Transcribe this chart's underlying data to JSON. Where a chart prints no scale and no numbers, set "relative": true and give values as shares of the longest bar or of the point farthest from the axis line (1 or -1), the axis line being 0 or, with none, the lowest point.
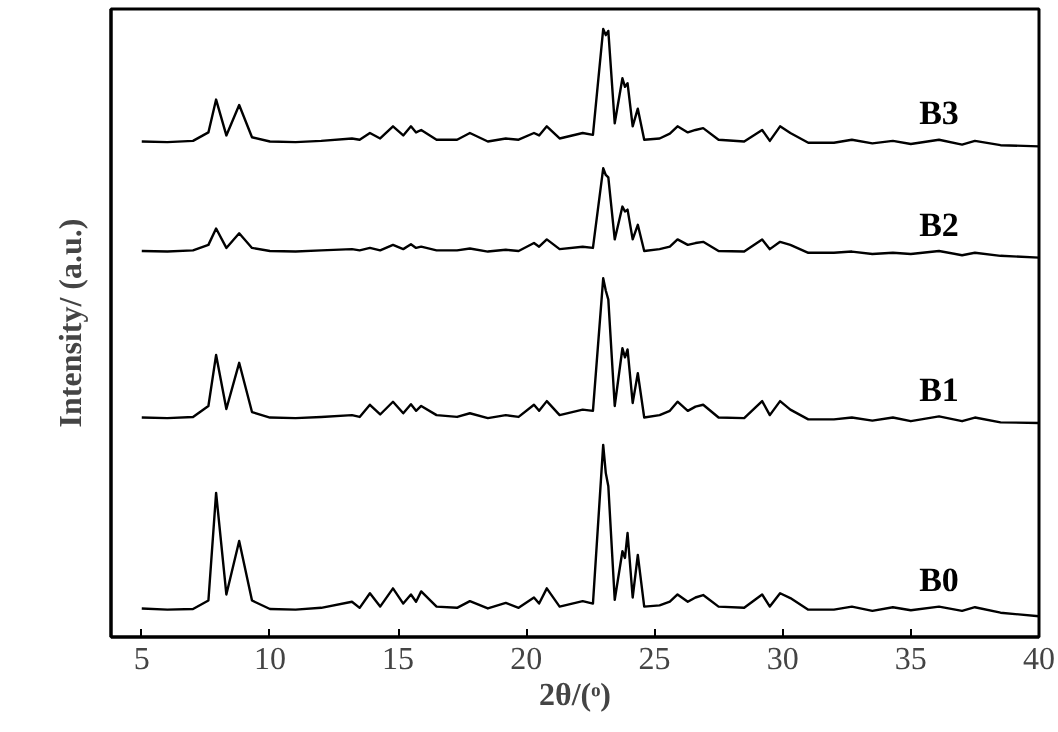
{
  "chart_data": {
    "type": "line",
    "relative": true,
    "xlabel": "2θ/(ᵒ)",
    "ylabel": "Intensity/ (a.u.)",
    "xlim": [
      3.8,
      40
    ],
    "xticks": [
      5,
      10,
      15,
      20,
      25,
      30,
      35,
      40
    ],
    "tick_labels": "x",
    "x": [
      5,
      6,
      7,
      7.6,
      7.9,
      8.3,
      8.8,
      9.3,
      10,
      11,
      12,
      13.2,
      13.5,
      13.9,
      14.3,
      14.8,
      15.2,
      15.5,
      15.7,
      15.9,
      16.5,
      17.3,
      17.8,
      18.5,
      19.2,
      19.7,
      20.3,
      20.5,
      20.8,
      21.3,
      22.2,
      22.6,
      23.0,
      23.1,
      23.2,
      23.45,
      23.75,
      23.85,
      23.95,
      24.15,
      24.35,
      24.6,
      25.2,
      25.6,
      25.9,
      26.3,
      26.6,
      26.9,
      27.5,
      28.5,
      29.2,
      29.5,
      29.9,
      30.3,
      31,
      32,
      32.7,
      33.5,
      34.3,
      35,
      36.1,
      37,
      37.5,
      38.5,
      40
    ],
    "series": [
      {
        "name": "B0",
        "color": "#000000",
        "values": [
          0.047,
          0.045,
          0.046,
          0.06,
          0.237,
          0.07,
          0.158,
          0.06,
          0.046,
          0.045,
          0.048,
          0.058,
          0.048,
          0.072,
          0.05,
          0.08,
          0.055,
          0.07,
          0.058,
          0.075,
          0.05,
          0.048,
          0.059,
          0.047,
          0.056,
          0.048,
          0.065,
          0.055,
          0.08,
          0.05,
          0.059,
          0.055,
          0.316,
          0.27,
          0.248,
          0.061,
          0.141,
          0.13,
          0.171,
          0.065,
          0.135,
          0.05,
          0.052,
          0.058,
          0.07,
          0.058,
          0.065,
          0.069,
          0.05,
          0.048,
          0.07,
          0.05,
          0.072,
          0.064,
          0.045,
          0.045,
          0.05,
          0.043,
          0.049,
          0.044,
          0.05,
          0.043,
          0.049,
          0.04,
          0.034
        ]
      },
      {
        "name": "B1",
        "color": "#000000",
        "values": [
          0.361,
          0.36,
          0.362,
          0.38,
          0.464,
          0.375,
          0.451,
          0.37,
          0.361,
          0.36,
          0.362,
          0.365,
          0.362,
          0.382,
          0.366,
          0.387,
          0.368,
          0.383,
          0.372,
          0.38,
          0.365,
          0.362,
          0.368,
          0.36,
          0.365,
          0.362,
          0.382,
          0.372,
          0.388,
          0.365,
          0.374,
          0.372,
          0.59,
          0.57,
          0.555,
          0.38,
          0.475,
          0.46,
          0.473,
          0.385,
          0.434,
          0.361,
          0.365,
          0.372,
          0.387,
          0.372,
          0.379,
          0.382,
          0.361,
          0.36,
          0.388,
          0.365,
          0.388,
          0.374,
          0.358,
          0.358,
          0.361,
          0.356,
          0.361,
          0.355,
          0.363,
          0.355,
          0.361,
          0.353,
          0.352
        ]
      },
      {
        "name": "B2",
        "color": "#000000",
        "values": [
          0.635,
          0.634,
          0.636,
          0.645,
          0.672,
          0.64,
          0.664,
          0.64,
          0.635,
          0.634,
          0.636,
          0.638,
          0.636,
          0.64,
          0.636,
          0.645,
          0.638,
          0.646,
          0.64,
          0.642,
          0.636,
          0.636,
          0.639,
          0.634,
          0.637,
          0.635,
          0.648,
          0.642,
          0.654,
          0.638,
          0.642,
          0.64,
          0.771,
          0.76,
          0.756,
          0.654,
          0.708,
          0.7,
          0.703,
          0.654,
          0.678,
          0.635,
          0.638,
          0.642,
          0.654,
          0.645,
          0.648,
          0.65,
          0.635,
          0.634,
          0.654,
          0.638,
          0.65,
          0.645,
          0.632,
          0.632,
          0.634,
          0.63,
          0.632,
          0.63,
          0.635,
          0.628,
          0.632,
          0.627,
          0.624
        ]
      },
      {
        "name": "B3",
        "color": "#000000",
        "values": [
          0.815,
          0.814,
          0.816,
          0.83,
          0.884,
          0.825,
          0.875,
          0.822,
          0.815,
          0.814,
          0.816,
          0.82,
          0.818,
          0.829,
          0.82,
          0.84,
          0.825,
          0.84,
          0.83,
          0.834,
          0.818,
          0.818,
          0.829,
          0.815,
          0.82,
          0.818,
          0.829,
          0.825,
          0.84,
          0.82,
          0.829,
          0.826,
          1.0,
          0.99,
          0.997,
          0.845,
          0.919,
          0.905,
          0.911,
          0.84,
          0.869,
          0.818,
          0.82,
          0.828,
          0.84,
          0.83,
          0.834,
          0.837,
          0.818,
          0.815,
          0.834,
          0.816,
          0.84,
          0.829,
          0.813,
          0.813,
          0.818,
          0.812,
          0.816,
          0.811,
          0.818,
          0.81,
          0.816,
          0.809,
          0.807
        ]
      }
    ]
  }
}
